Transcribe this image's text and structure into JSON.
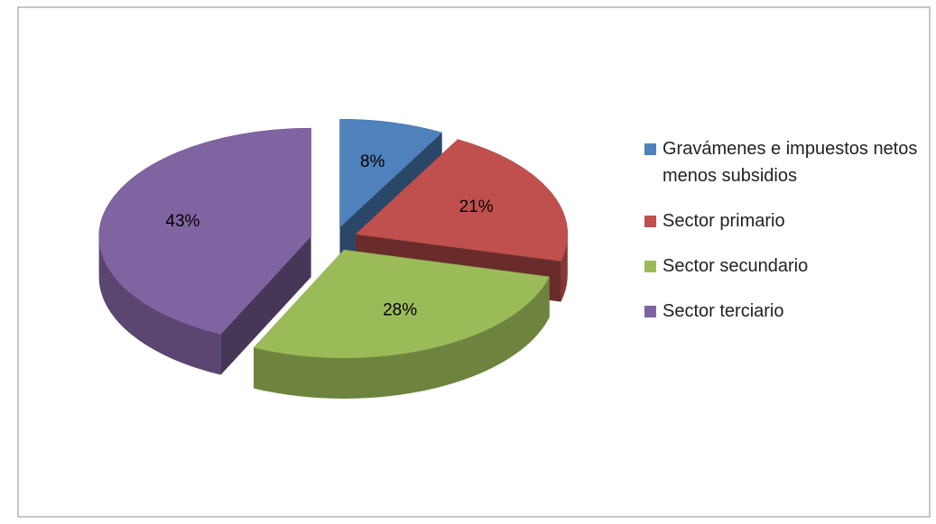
{
  "chart_data": {
    "type": "pie",
    "categories": [
      "Gravámenes e impuestos netos menos subsidios",
      "Sector primario",
      "Sector secundario",
      "Sector terciario"
    ],
    "values": [
      8,
      21,
      28,
      43
    ],
    "value_labels": [
      "8%",
      "21%",
      "28%",
      "43%"
    ],
    "colors": [
      "#4f81bd",
      "#c0504d",
      "#9bbb59",
      "#8064a2"
    ],
    "legend": "right"
  }
}
